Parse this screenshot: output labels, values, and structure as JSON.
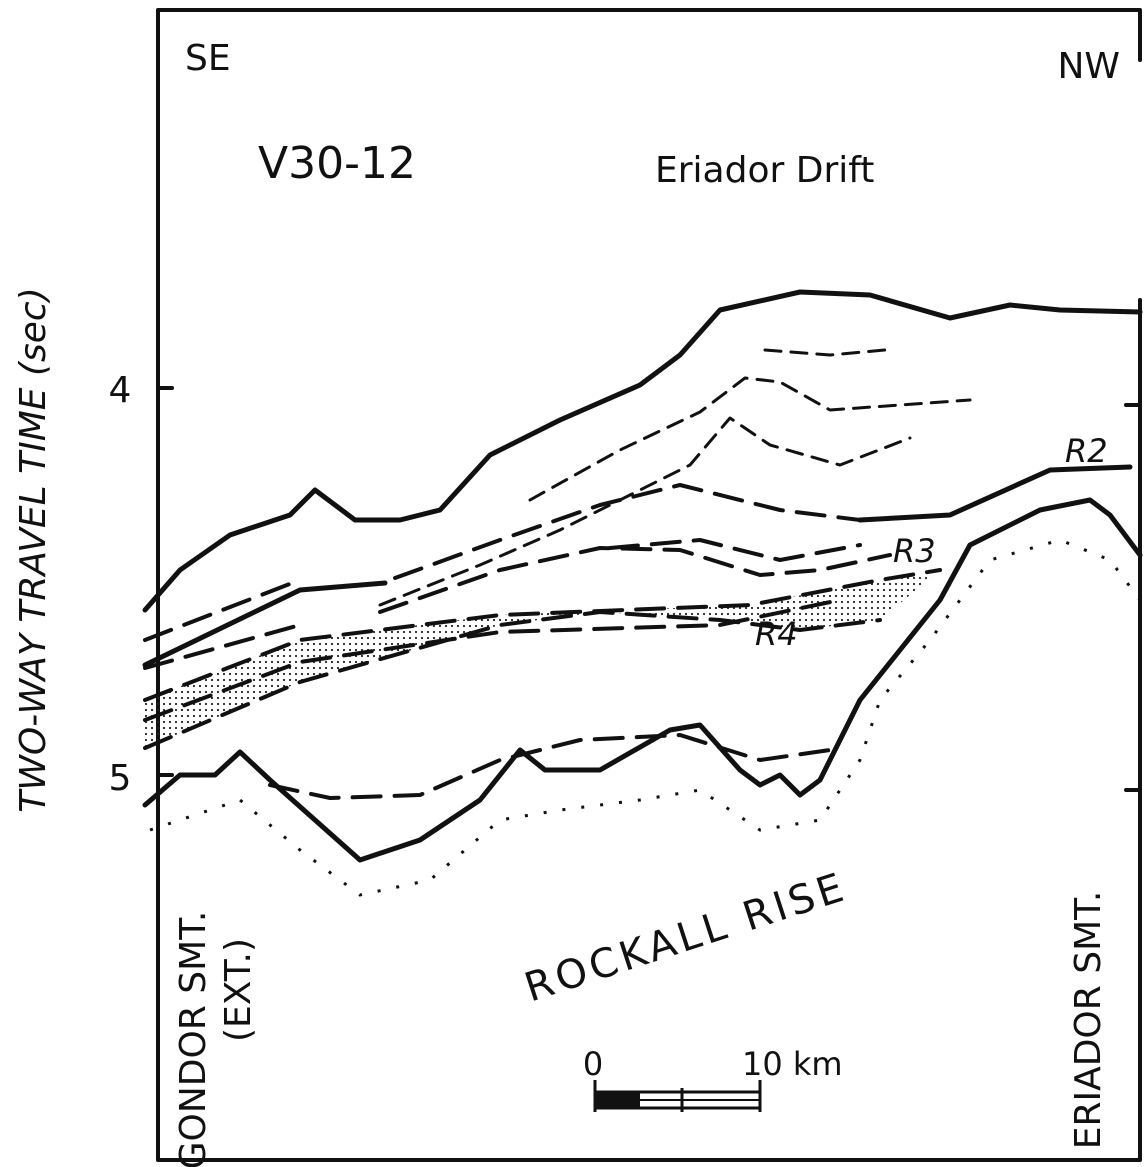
{
  "header": {
    "left": "SE",
    "right": "NW",
    "line_id": "V30-12",
    "feature": "Eriador Drift"
  },
  "axis": {
    "label": "TWO-WAY TRAVEL TIME (sec)",
    "ticks": [
      "4",
      "5"
    ]
  },
  "reflectors": [
    "R2",
    "R3",
    "R4"
  ],
  "features": {
    "gondor": [
      "GONDOR SMT.",
      "(EXT.)"
    ],
    "rockall": "ROCKALL RISE",
    "eriador": "ERIADOR SMT."
  },
  "scale": {
    "start": "0",
    "end": "10 km"
  }
}
